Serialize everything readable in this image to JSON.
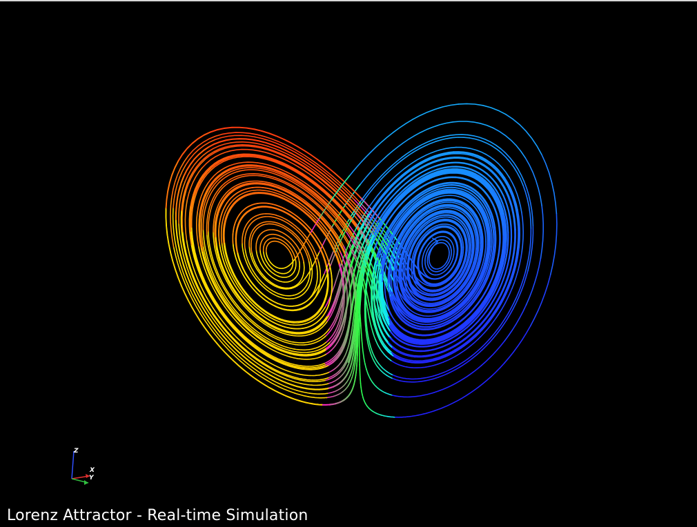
{
  "caption": "Lorenz Attractor - Real-time Simulation",
  "axes_widget": {
    "x_label": "X",
    "y_label": "Y",
    "z_label": "Z",
    "x_color": "#e03030",
    "y_color": "#30c040",
    "z_color": "#3050ff"
  },
  "scene": {
    "background": "#000000",
    "colormap": [
      "#2020ff",
      "#2a7aff",
      "#10e6ff",
      "#30ff40",
      "#ffee00",
      "#ffc000",
      "#ff3010",
      "#ff20c0"
    ],
    "trajectory": "lorenz"
  }
}
